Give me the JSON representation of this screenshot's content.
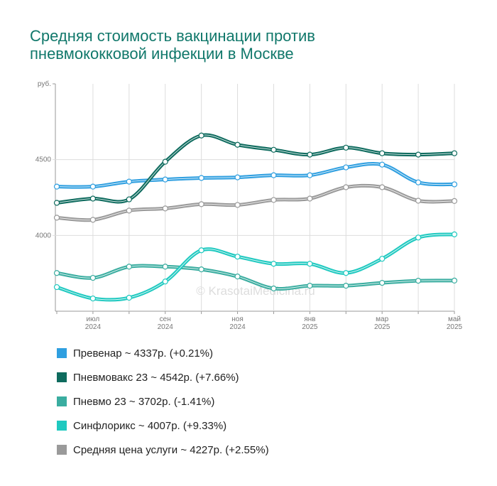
{
  "chart_data": {
    "type": "line",
    "title": "Средняя стоимость вакцинации против пневмококковой инфекции в Москве",
    "y_unit": "руб.",
    "watermark": "© KrasotaiMedicina.ru",
    "categories": [
      null,
      "июл 2024",
      null,
      "сен 2024",
      null,
      "ноя 2024",
      null,
      "янв 2025",
      null,
      "мар 2025",
      null,
      "май 2025"
    ],
    "ylim": [
      3500,
      5000
    ],
    "yticks": [
      4000,
      4500
    ],
    "grid": true,
    "series": [
      {
        "name": "Превенар",
        "summary": "~ 4337р. (+0.21%)",
        "color": "#2f9fe0",
        "values": [
          4322,
          4322,
          4355,
          4369,
          4379,
          4383,
          4397,
          4397,
          4449,
          4467,
          4350,
          4337
        ]
      },
      {
        "name": "Пневмовакс 23",
        "summary": "~ 4542р. (+7.66%)",
        "color": "#0e6b5e",
        "values": [
          4215,
          4243,
          4238,
          4486,
          4659,
          4598,
          4565,
          4533,
          4579,
          4542,
          4533,
          4542
        ]
      },
      {
        "name": "Пневмо 23",
        "summary": "~ 3702р. (-1.41%)",
        "color": "#3aada0",
        "values": [
          3752,
          3720,
          3794,
          3794,
          3776,
          3729,
          3650,
          3668,
          3668,
          3687,
          3701,
          3702
        ]
      },
      {
        "name": "Синфлорикс",
        "summary": "~ 4007р. (+9.33%)",
        "color": "#1fc9c0",
        "values": [
          3659,
          3584,
          3589,
          3696,
          3902,
          3860,
          3813,
          3813,
          3752,
          3846,
          3986,
          4007
        ]
      },
      {
        "name": "Средняя цена услуги",
        "summary": "~ 4227р. (+2.55%)",
        "color": "#9a9a9a",
        "values": [
          4117,
          4103,
          4164,
          4178,
          4206,
          4201,
          4234,
          4243,
          4318,
          4318,
          4229,
          4227
        ]
      }
    ]
  }
}
